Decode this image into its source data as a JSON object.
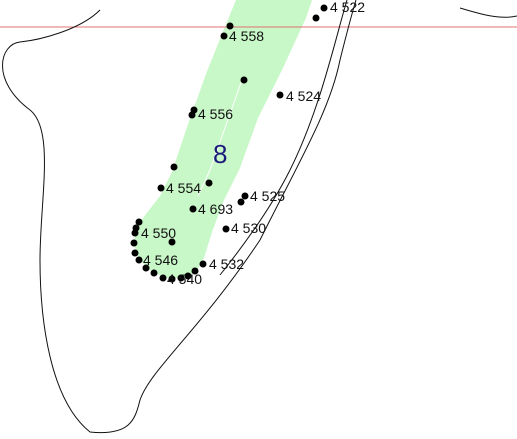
{
  "map": {
    "parcel": {
      "label": "8",
      "fill": "#c8f7c8",
      "label_color": "#1a1a7a"
    },
    "boundary_line_color": "#e07070",
    "outline_color": "#111111",
    "point_labels": {
      "p4522": "4 522",
      "p4558": "4 558",
      "p4524": "4 524",
      "p4556": "4 556",
      "p4554": "4 554",
      "p4525": "4 525",
      "p4693": "4 693",
      "p4530": "4 530",
      "p4550": "4 550",
      "p4546": "4 546",
      "p4532": "4 532",
      "p4540": "4 540"
    }
  }
}
